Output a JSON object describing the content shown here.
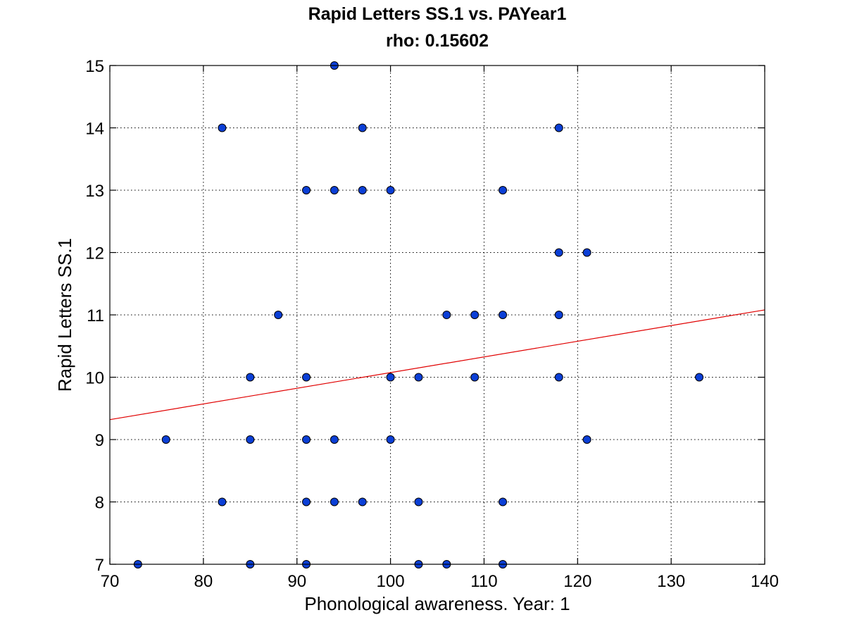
{
  "chart_data": {
    "type": "scatter",
    "title": "Rapid Letters SS.1 vs. PAYear1",
    "subtitle": "rho: 0.15602",
    "xlabel": "Phonological awareness. Year: 1",
    "ylabel": "Rapid Letters SS.1",
    "xlim": [
      70,
      140
    ],
    "ylim": [
      7,
      15
    ],
    "xticks": [
      70,
      80,
      90,
      100,
      110,
      120,
      130,
      140
    ],
    "yticks": [
      7,
      8,
      9,
      10,
      11,
      12,
      13,
      14,
      15
    ],
    "grid": true,
    "colors": {
      "point_fill": "#0b3fd6",
      "point_stroke": "#000000",
      "fit_line": "#e00000"
    },
    "series": [
      {
        "points": [
          [
            94,
            15
          ],
          [
            82,
            14
          ],
          [
            97,
            14
          ],
          [
            118,
            14
          ],
          [
            91,
            13
          ],
          [
            94,
            13
          ],
          [
            97,
            13
          ],
          [
            100,
            13
          ],
          [
            112,
            13
          ],
          [
            118,
            12
          ],
          [
            121,
            12
          ],
          [
            88,
            11
          ],
          [
            106,
            11
          ],
          [
            109,
            11
          ],
          [
            112,
            11
          ],
          [
            118,
            11
          ],
          [
            85,
            10
          ],
          [
            91,
            10
          ],
          [
            100,
            10
          ],
          [
            103,
            10
          ],
          [
            109,
            10
          ],
          [
            118,
            10
          ],
          [
            133,
            10
          ],
          [
            76,
            9
          ],
          [
            85,
            9
          ],
          [
            91,
            9
          ],
          [
            94,
            9
          ],
          [
            100,
            9
          ],
          [
            121,
            9
          ],
          [
            82,
            8
          ],
          [
            91,
            8
          ],
          [
            94,
            8
          ],
          [
            97,
            8
          ],
          [
            103,
            8
          ],
          [
            112,
            8
          ],
          [
            73,
            7
          ],
          [
            85,
            7
          ],
          [
            91,
            7
          ],
          [
            103,
            7
          ],
          [
            106,
            7
          ],
          [
            112,
            7
          ]
        ]
      }
    ],
    "fit_line": {
      "x": [
        70,
        140
      ],
      "y": [
        9.32,
        11.08
      ]
    }
  }
}
